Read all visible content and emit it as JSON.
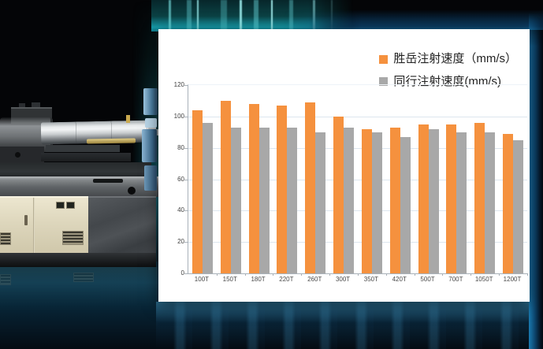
{
  "chart_data": {
    "type": "bar",
    "title": "",
    "xlabel": "",
    "ylabel": "",
    "categories": [
      "100T",
      "150T",
      "180T",
      "220T",
      "260T",
      "300T",
      "350T",
      "420T",
      "500T",
      "700T",
      "1050T",
      "1200T"
    ],
    "series": [
      {
        "name": "胜岳注射速度（mm/s）",
        "color": "#F5913E",
        "values": [
          104,
          110,
          108,
          107,
          109,
          100,
          92,
          93,
          95,
          95,
          96,
          89
        ]
      },
      {
        "name": "同行注射速度(mm/s)",
        "color": "#A8A8A8",
        "values": [
          96,
          93,
          93,
          93,
          90,
          93,
          90,
          87,
          92,
          90,
          90,
          85
        ]
      }
    ],
    "ylim": [
      0,
      120
    ],
    "yticks": [
      0,
      20,
      40,
      60,
      80,
      100,
      120
    ],
    "grid": true,
    "legend_position": "top-right"
  },
  "theme": {
    "panel_bg": "#ffffff",
    "grid_color": "#dde6ee",
    "axis_color": "#a9b1b9",
    "bar_orange": "#F5913E",
    "bar_gray": "#A8A8A8",
    "glow_teal": "#1aa2b4",
    "floor_blue": "#0d3a50"
  }
}
